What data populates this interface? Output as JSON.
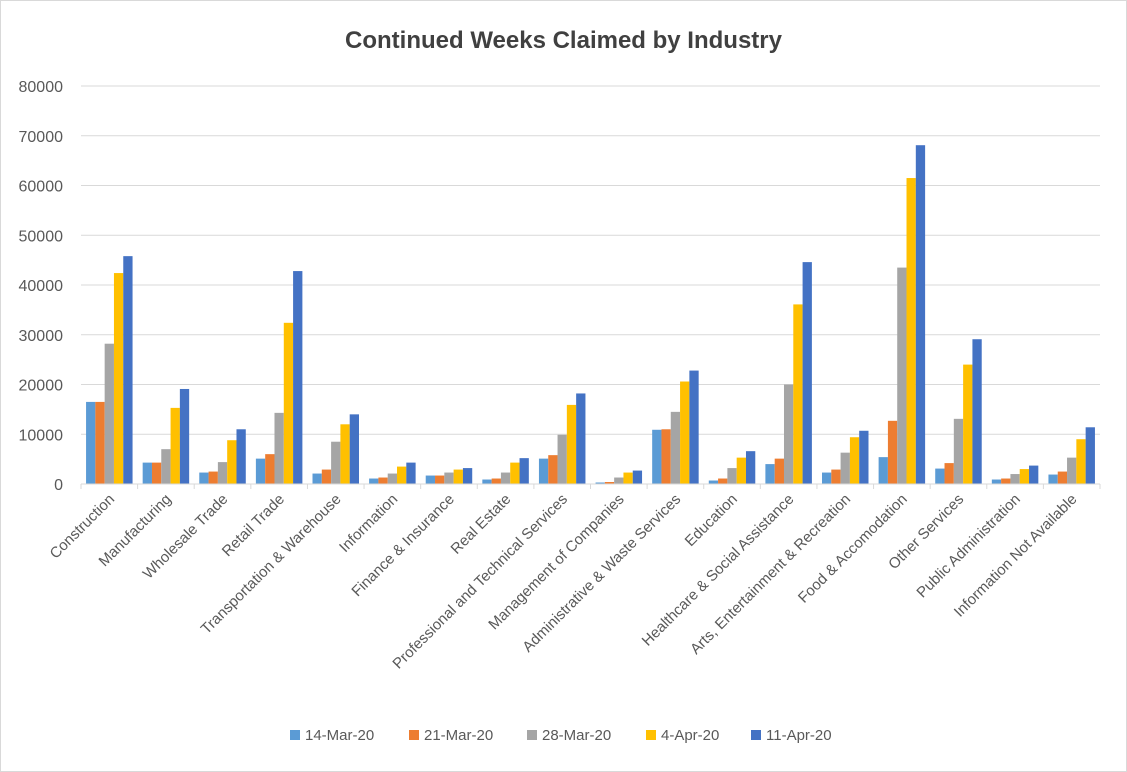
{
  "chart_data": {
    "type": "bar",
    "title": "Continued Weeks Claimed by Industry",
    "xlabel": "",
    "ylabel": "",
    "ylim": [
      0,
      80000
    ],
    "yticks": [
      0,
      10000,
      20000,
      30000,
      40000,
      50000,
      60000,
      70000,
      80000
    ],
    "grid": true,
    "legend_position": "bottom",
    "categories": [
      "Construction",
      "Manufacturing",
      "Wholesale Trade",
      "Retail Trade",
      "Transportation & Warehouse",
      "Information",
      "Finance & Insurance",
      "Real Estate",
      "Professional and Technical Services",
      "Management of Companies",
      "Administrative & Waste Services",
      "Education",
      "Healthcare & Social Assistance",
      "Arts, Entertainment & Recreation",
      "Food & Accomodation",
      "Other Services",
      "Public Administration",
      "Information Not Available"
    ],
    "series": [
      {
        "name": "14-Mar-20",
        "color": "#5b9bd5",
        "values": [
          16500,
          4300,
          2300,
          5100,
          2100,
          1100,
          1700,
          900,
          5100,
          300,
          10900,
          700,
          4000,
          2300,
          5400,
          3100,
          900,
          1900
        ]
      },
      {
        "name": "21-Mar-20",
        "color": "#ed7d31",
        "values": [
          16500,
          4300,
          2500,
          6000,
          2900,
          1300,
          1700,
          1100,
          5800,
          400,
          11000,
          1100,
          5100,
          2900,
          12700,
          4200,
          1100,
          2500
        ]
      },
      {
        "name": "28-Mar-20",
        "color": "#a5a5a5",
        "values": [
          28200,
          7000,
          4400,
          14300,
          8500,
          2100,
          2300,
          2300,
          9900,
          1300,
          14500,
          3200,
          20000,
          6300,
          43500,
          13100,
          2000,
          5300
        ]
      },
      {
        "name": "4-Apr-20",
        "color": "#ffc000",
        "values": [
          42400,
          15300,
          8800,
          32400,
          12000,
          3500,
          2900,
          4300,
          15900,
          2300,
          20600,
          5300,
          36100,
          9400,
          61500,
          24000,
          3000,
          9000
        ]
      },
      {
        "name": "11-Apr-20",
        "color": "#4472c4",
        "values": [
          45800,
          19100,
          11000,
          42800,
          14000,
          4300,
          3200,
          5200,
          18200,
          2700,
          22800,
          6600,
          44600,
          10700,
          68100,
          29100,
          3700,
          11400
        ]
      }
    ]
  }
}
